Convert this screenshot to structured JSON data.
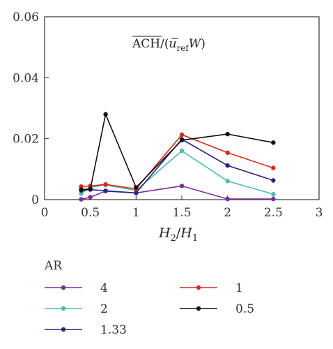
{
  "chart_data": {
    "type": "line",
    "annotation": "ACH/(ū_ref W)",
    "annotation_parts": {
      "main": "ACH/(",
      "u": "u",
      "sub": "ref",
      "w": "W",
      "close": ")"
    },
    "xlabel_parts": {
      "h2": "H",
      "two": "2",
      "slash": "/",
      "h1": "H",
      "one": "1"
    },
    "xlim": [
      0,
      3
    ],
    "ylim": [
      0,
      0.06
    ],
    "xticks": [
      0,
      0.5,
      1,
      1.5,
      2,
      2.5,
      3
    ],
    "xtick_labels": [
      "0",
      "0.5",
      "1",
      "1.5",
      "2",
      "2.5",
      "3"
    ],
    "yticks": [
      0,
      0.02,
      0.04,
      0.06
    ],
    "ytick_labels": [
      "0",
      "0.02",
      "0.04",
      "0.06"
    ],
    "grid": false,
    "legend_title": "AR",
    "legend_placement": "below",
    "x": [
      0.4,
      0.5,
      0.667,
      1,
      1.5,
      2,
      2.5
    ],
    "series": [
      {
        "name": "4",
        "color": "#7b2a9c",
        "values": [
          0.0001,
          0.0008,
          0.0028,
          0.0022,
          0.0045,
          0.0002,
          0.0002
        ]
      },
      {
        "name": "2",
        "color": "#4fb8b2",
        "values": [
          0.002,
          0.004,
          0.0048,
          0.003,
          0.016,
          0.0061,
          0.0018
        ]
      },
      {
        "name": "1.33",
        "color": "#2a2580",
        "values": [
          0.003,
          0.0033,
          0.0029,
          0.0022,
          0.0198,
          0.0112,
          0.0063
        ]
      },
      {
        "name": "1",
        "color": "#d6281e",
        "values": [
          0.0043,
          0.0045,
          0.005,
          0.0035,
          0.0213,
          0.0154,
          0.0104
        ]
      },
      {
        "name": "0.5",
        "color": "#111111",
        "values": [
          0.0033,
          0.0035,
          0.028,
          0.004,
          0.0195,
          0.0215,
          0.0187
        ]
      }
    ],
    "legend_order": [
      0,
      3,
      1,
      4,
      2
    ]
  }
}
